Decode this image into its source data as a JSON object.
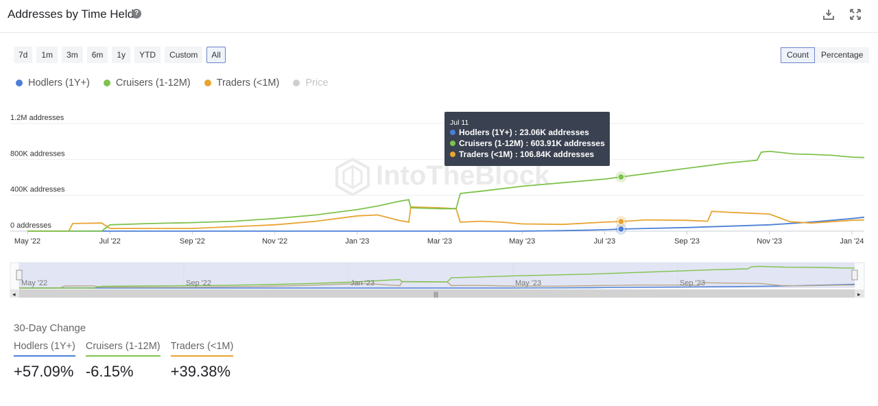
{
  "header": {
    "title": "Addresses by Time Held",
    "help_label": "?"
  },
  "range_buttons": [
    "7d",
    "1m",
    "3m",
    "6m",
    "1y",
    "YTD",
    "Custom",
    "All"
  ],
  "range_selected": "All",
  "mode_buttons": [
    "Count",
    "Percentage"
  ],
  "mode_selected": "Count",
  "legend": [
    {
      "name": "Hodlers (1Y+)",
      "color": "#4a7fd6",
      "enabled": true
    },
    {
      "name": "Cruisers (1-12M)",
      "color": "#7ec24c",
      "enabled": true
    },
    {
      "name": "Traders (<1M)",
      "color": "#e8a431",
      "enabled": true
    },
    {
      "name": "Price",
      "color": "#cfcfcf",
      "enabled": false
    }
  ],
  "watermark": "IntoTheBlock",
  "tooltip": {
    "date": "Jul 11",
    "rows": [
      {
        "label": "Hodlers (1Y+) : 23.06K addresses",
        "color": "#4a7fd6"
      },
      {
        "label": "Cruisers (1-12M) : 603.91K addresses",
        "color": "#7ec24c"
      },
      {
        "label": "Traders (<1M) : 106.84K addresses",
        "color": "#e8a431"
      }
    ]
  },
  "chart_data": {
    "type": "line",
    "ylabel_ticks": [
      "0 addresses",
      "400K addresses",
      "800K addresses",
      "1.2M addresses"
    ],
    "y_ticks": [
      0,
      400000,
      800000,
      1200000
    ],
    "ylim": [
      0,
      1200000
    ],
    "x_ticks": [
      "May '22",
      "Jul '22",
      "Sep '22",
      "Nov '22",
      "Jan '23",
      "Mar '23",
      "May '23",
      "Jul '23",
      "Sep '23",
      "Nov '23",
      "Jan '24"
    ],
    "x_tick_values": [
      0,
      2,
      4,
      6,
      8,
      10,
      12,
      14,
      16,
      18,
      20
    ],
    "nav_ticks": [
      "May '22",
      "Sep '22",
      "Jan '23",
      "May '23",
      "Sep '23"
    ],
    "nav_tick_values": [
      0,
      4,
      8,
      12,
      16
    ],
    "x_range": [
      0,
      20.3
    ],
    "series": [
      {
        "name": "Hodlers (1Y+)",
        "color": "#4a7fd6",
        "points": [
          [
            0,
            0
          ],
          [
            10,
            0
          ],
          [
            12,
            0
          ],
          [
            13,
            5000
          ],
          [
            14,
            15000
          ],
          [
            14.4,
            23060
          ],
          [
            15,
            30000
          ],
          [
            16,
            40000
          ],
          [
            17,
            55000
          ],
          [
            18,
            70000
          ],
          [
            19,
            100000
          ],
          [
            20,
            140000
          ],
          [
            20.3,
            155000
          ]
        ]
      },
      {
        "name": "Cruisers (1-12M)",
        "color": "#7ec24c",
        "points": [
          [
            0,
            0
          ],
          [
            1.8,
            0
          ],
          [
            2,
            70000
          ],
          [
            3,
            85000
          ],
          [
            4,
            95000
          ],
          [
            5,
            110000
          ],
          [
            6,
            140000
          ],
          [
            7,
            180000
          ],
          [
            8,
            240000
          ],
          [
            8.5,
            280000
          ],
          [
            9,
            330000
          ],
          [
            9.25,
            350000
          ],
          [
            9.3,
            260000
          ],
          [
            10,
            250000
          ],
          [
            10.4,
            250000
          ],
          [
            10.5,
            420000
          ],
          [
            11,
            445000
          ],
          [
            12,
            500000
          ],
          [
            13,
            540000
          ],
          [
            14,
            580000
          ],
          [
            14.4,
            603910
          ],
          [
            15,
            640000
          ],
          [
            16,
            700000
          ],
          [
            17,
            760000
          ],
          [
            17.7,
            790000
          ],
          [
            17.8,
            880000
          ],
          [
            18,
            890000
          ],
          [
            18.6,
            860000
          ],
          [
            19,
            855000
          ],
          [
            19.5,
            845000
          ],
          [
            20,
            825000
          ],
          [
            20.3,
            820000
          ]
        ]
      },
      {
        "name": "Traders (<1M)",
        "color": "#e8a431",
        "points": [
          [
            0,
            0
          ],
          [
            1,
            0
          ],
          [
            1.1,
            85000
          ],
          [
            1.8,
            90000
          ],
          [
            2,
            30000
          ],
          [
            3,
            30000
          ],
          [
            4,
            30000
          ],
          [
            5,
            50000
          ],
          [
            6,
            70000
          ],
          [
            7,
            110000
          ],
          [
            8,
            170000
          ],
          [
            8.5,
            180000
          ],
          [
            9,
            120000
          ],
          [
            9.25,
            100000
          ],
          [
            9.3,
            270000
          ],
          [
            10,
            260000
          ],
          [
            10.4,
            250000
          ],
          [
            10.5,
            100000
          ],
          [
            11,
            110000
          ],
          [
            11.5,
            100000
          ],
          [
            12,
            80000
          ],
          [
            13,
            75000
          ],
          [
            14,
            100000
          ],
          [
            14.4,
            106840
          ],
          [
            15,
            125000
          ],
          [
            16,
            120000
          ],
          [
            16.5,
            110000
          ],
          [
            16.6,
            220000
          ],
          [
            17,
            210000
          ],
          [
            17.5,
            200000
          ],
          [
            18,
            190000
          ],
          [
            18.5,
            105000
          ],
          [
            19,
            90000
          ],
          [
            20,
            120000
          ],
          [
            20.3,
            125000
          ]
        ]
      }
    ]
  },
  "thirty_day": {
    "title": "30-Day Change",
    "items": [
      {
        "label": "Hodlers (1Y+)",
        "value": "+57.09%",
        "color": "#4a7fd6"
      },
      {
        "label": "Cruisers (1-12M)",
        "value": "-6.15%",
        "color": "#7ec24c"
      },
      {
        "label": "Traders (<1M)",
        "value": "+39.38%",
        "color": "#e8a431"
      }
    ]
  }
}
